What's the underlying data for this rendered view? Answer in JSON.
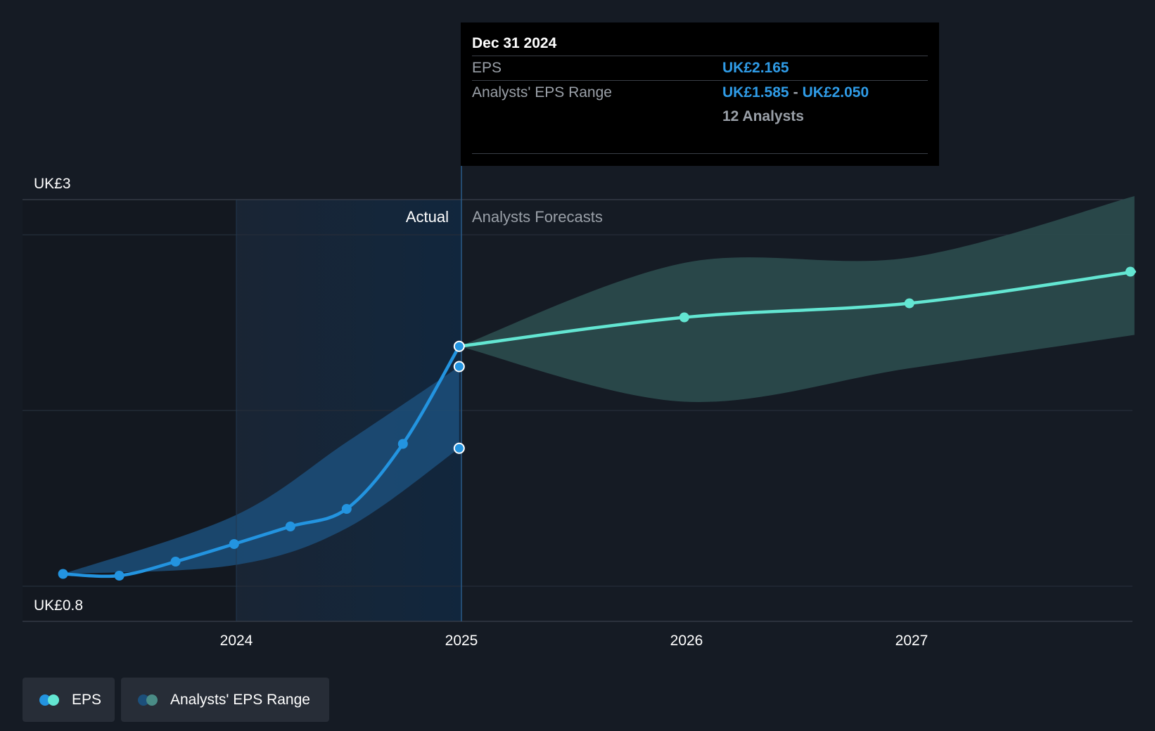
{
  "tooltip": {
    "date": "Dec 31 2024",
    "eps_label": "EPS",
    "eps_value": "UK£2.165",
    "range_label": "Analysts' EPS Range",
    "range_low": "UK£1.585",
    "range_sep": "-",
    "range_high": "UK£2.050",
    "analysts": "12 Analysts"
  },
  "zones": {
    "actual": "Actual",
    "forecast": "Analysts Forecasts"
  },
  "legend": {
    "eps": "EPS",
    "range": "Analysts' EPS Range"
  },
  "colors": {
    "background": "#151b24",
    "eps_actual": "#2394e0",
    "eps_forecast": "#63e6d2",
    "range_actual": "#1c4f7a",
    "range_forecast": "#2a4a4c",
    "tooltip_value": "#2f9be6"
  },
  "chart_data": {
    "type": "line",
    "title": "",
    "ylabel": "",
    "xlabel": "",
    "ylim": [
      0.8,
      3
    ],
    "y_tick_labels": [
      "UK£3",
      "UK£0.8"
    ],
    "x_tick_labels": [
      "2024",
      "2025",
      "2026",
      "2027"
    ],
    "x_ticks": [
      2024,
      2025,
      2026,
      2027
    ],
    "xlim": [
      2023.05,
      2027.99
    ],
    "grid": true,
    "legend_position": "bottom-left",
    "series": [
      {
        "name": "EPS",
        "segment": "actual",
        "x": [
          2023.23,
          2023.48,
          2023.73,
          2023.99,
          2024.24,
          2024.49,
          2024.74,
          2024.99
        ],
        "y": [
          0.87,
          0.86,
          0.94,
          1.04,
          1.14,
          1.24,
          1.61,
          2.165
        ]
      },
      {
        "name": "EPS",
        "segment": "forecast",
        "x": [
          2024.99,
          2025.99,
          2026.99,
          2027.99
        ],
        "y": [
          2.165,
          2.33,
          2.41,
          2.59
        ]
      },
      {
        "name": "Analysts' EPS Range",
        "segment": "actual",
        "x": [
          2023.23,
          2023.99,
          2024.49,
          2024.99
        ],
        "low": [
          0.87,
          0.92,
          1.13,
          1.585
        ],
        "high": [
          0.87,
          1.2,
          1.62,
          2.05
        ]
      },
      {
        "name": "Analysts' EPS Range",
        "segment": "forecast",
        "x": [
          2024.99,
          2025.99,
          2026.99,
          2027.99
        ],
        "low": [
          2.165,
          1.85,
          2.04,
          2.23
        ],
        "high": [
          2.165,
          2.64,
          2.67,
          3.02
        ]
      }
    ],
    "highlight": {
      "x": 2024.99,
      "values": [
        2.165,
        2.05,
        1.585
      ]
    }
  }
}
